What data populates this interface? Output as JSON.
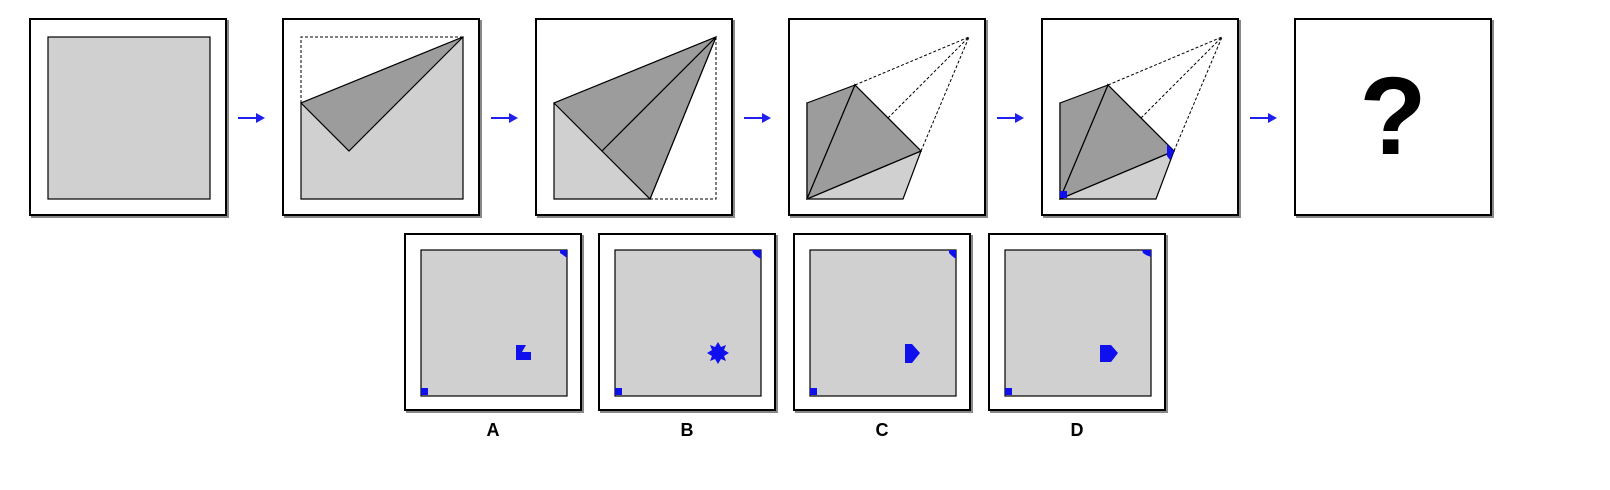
{
  "colors": {
    "paper": "#d0d0d0",
    "folded_layer": "#9c9c9c",
    "hole": "#1010ee",
    "arrow": "#2020ee",
    "outline": "#000000"
  },
  "sequence": {
    "steps": [
      "unfolded-square",
      "fold-corner",
      "fold-side",
      "fold-cone",
      "punch-holes"
    ],
    "unknown": "?"
  },
  "options": [
    {
      "label": "A",
      "center_hole_icon": "notched-square-icon"
    },
    {
      "label": "B",
      "center_hole_icon": "star-icon"
    },
    {
      "label": "C",
      "center_hole_icon": "pentagon-icon"
    },
    {
      "label": "D",
      "center_hole_icon": "pentagon-icon"
    }
  ]
}
